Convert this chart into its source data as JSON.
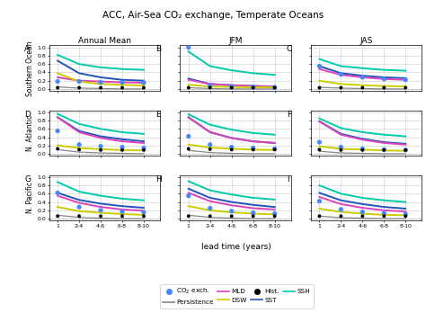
{
  "title": "ACC, Air-Sea CO₂ exchange, Temperate Oceans",
  "col_labels": [
    "Annual Mean",
    "JFM",
    "JAS"
  ],
  "row_labels": [
    "Southern Ocean",
    "N. Atlantic",
    "N. Pacific"
  ],
  "panel_letters": [
    "A",
    "B",
    "C",
    "D",
    "E",
    "F",
    "G",
    "H",
    "I"
  ],
  "xlabel": "lead time (years)",
  "x_ticks": [
    1,
    3,
    5,
    7,
    9
  ],
  "x_tick_labels": [
    "1",
    "2-4",
    "4-6",
    "6-8",
    "8-10"
  ],
  "ylim": [
    -0.05,
    1.05
  ],
  "y_ticks": [
    0.0,
    0.2,
    0.4,
    0.6,
    0.8,
    1.0
  ],
  "line_colors": {
    "SST": "#2255bb",
    "SSH": "#00ccaa",
    "MLD": "#dd44bb",
    "DSW": "#cccc00",
    "Persistence": "#888888"
  },
  "co2_color": "#4488ff",
  "hist_color": "#000000",
  "panels": {
    "A": {
      "SSH": [
        0.82,
        0.6,
        0.52,
        0.48,
        0.46
      ],
      "SST": [
        0.68,
        0.38,
        0.28,
        0.22,
        0.2
      ],
      "MLD": [
        0.28,
        0.2,
        0.18,
        0.16,
        0.15
      ],
      "DSW": [
        0.38,
        0.18,
        0.12,
        0.1,
        0.08
      ],
      "Persistence": [
        0.05,
        0.02,
        0.01,
        0.0,
        0.0
      ],
      "CO2_exch": [
        0.18,
        0.18,
        0.16,
        0.16,
        0.15
      ],
      "Hist": [
        0.03,
        0.03,
        0.03,
        0.03,
        0.03
      ]
    },
    "B": {
      "SSH": [
        0.9,
        0.55,
        0.45,
        0.38,
        0.34
      ],
      "SST": [
        0.25,
        0.12,
        0.09,
        0.07,
        0.06
      ],
      "MLD": [
        0.22,
        0.12,
        0.09,
        0.07,
        0.06
      ],
      "DSW": [
        0.1,
        0.06,
        0.05,
        0.04,
        0.04
      ],
      "Persistence": [
        0.03,
        0.01,
        0.0,
        0.0,
        0.0
      ],
      "CO2_exch": [
        1.0,
        0.08,
        0.06,
        0.05,
        0.04
      ],
      "Hist": [
        0.03,
        0.03,
        0.03,
        0.03,
        0.03
      ]
    },
    "C": {
      "SSH": [
        0.72,
        0.55,
        0.5,
        0.46,
        0.44
      ],
      "SST": [
        0.55,
        0.38,
        0.32,
        0.28,
        0.26
      ],
      "MLD": [
        0.48,
        0.34,
        0.28,
        0.24,
        0.22
      ],
      "DSW": [
        0.2,
        0.12,
        0.09,
        0.07,
        0.06
      ],
      "Persistence": [
        0.04,
        0.02,
        0.01,
        0.0,
        0.0
      ],
      "CO2_exch": [
        0.55,
        0.35,
        0.28,
        0.24,
        0.22
      ],
      "Hist": [
        0.03,
        0.03,
        0.03,
        0.03,
        0.03
      ]
    },
    "D": {
      "SSH": [
        0.96,
        0.72,
        0.6,
        0.52,
        0.48
      ],
      "SST": [
        0.88,
        0.55,
        0.42,
        0.35,
        0.3
      ],
      "MLD": [
        0.88,
        0.52,
        0.38,
        0.3,
        0.26
      ],
      "DSW": [
        0.2,
        0.14,
        0.11,
        0.09,
        0.08
      ],
      "Persistence": [
        0.1,
        0.04,
        0.02,
        0.01,
        0.0
      ],
      "CO2_exch": [
        0.55,
        0.22,
        0.18,
        0.16,
        0.14
      ],
      "Hist": [
        0.12,
        0.1,
        0.09,
        0.09,
        0.09
      ]
    },
    "E": {
      "SSH": [
        0.95,
        0.7,
        0.58,
        0.5,
        0.46
      ],
      "SST": [
        0.88,
        0.52,
        0.38,
        0.3,
        0.26
      ],
      "MLD": [
        0.88,
        0.52,
        0.38,
        0.3,
        0.26
      ],
      "DSW": [
        0.22,
        0.15,
        0.12,
        0.1,
        0.09
      ],
      "Persistence": [
        0.08,
        0.03,
        0.01,
        0.0,
        0.0
      ],
      "CO2_exch": [
        0.42,
        0.22,
        0.16,
        0.14,
        0.12
      ],
      "Hist": [
        0.12,
        0.11,
        0.1,
        0.1,
        0.1
      ]
    },
    "F": {
      "SSH": [
        0.85,
        0.62,
        0.52,
        0.46,
        0.42
      ],
      "SST": [
        0.78,
        0.48,
        0.36,
        0.28,
        0.24
      ],
      "MLD": [
        0.78,
        0.46,
        0.34,
        0.26,
        0.22
      ],
      "DSW": [
        0.18,
        0.12,
        0.1,
        0.08,
        0.07
      ],
      "Persistence": [
        0.06,
        0.02,
        0.01,
        0.0,
        0.0
      ],
      "CO2_exch": [
        0.28,
        0.16,
        0.12,
        0.1,
        0.09
      ],
      "Hist": [
        0.1,
        0.09,
        0.09,
        0.09,
        0.09
      ]
    },
    "G": {
      "SSH": [
        0.88,
        0.65,
        0.55,
        0.48,
        0.44
      ],
      "SST": [
        0.62,
        0.45,
        0.36,
        0.3,
        0.26
      ],
      "MLD": [
        0.55,
        0.38,
        0.28,
        0.22,
        0.19
      ],
      "DSW": [
        0.28,
        0.18,
        0.14,
        0.11,
        0.09
      ],
      "Persistence": [
        0.08,
        0.03,
        0.01,
        0.0,
        0.0
      ],
      "CO2_exch": [
        0.62,
        0.28,
        0.2,
        0.17,
        0.15
      ],
      "Hist": [
        0.06,
        0.06,
        0.06,
        0.06,
        0.06
      ]
    },
    "H": {
      "SSH": [
        0.9,
        0.68,
        0.58,
        0.5,
        0.46
      ],
      "SST": [
        0.72,
        0.5,
        0.4,
        0.33,
        0.28
      ],
      "MLD": [
        0.62,
        0.42,
        0.32,
        0.25,
        0.22
      ],
      "DSW": [
        0.3,
        0.2,
        0.15,
        0.12,
        0.1
      ],
      "Persistence": [
        0.08,
        0.03,
        0.01,
        0.0,
        0.0
      ],
      "CO2_exch": [
        0.55,
        0.25,
        0.18,
        0.14,
        0.12
      ],
      "Hist": [
        0.06,
        0.06,
        0.06,
        0.06,
        0.06
      ]
    },
    "I": {
      "SSH": [
        0.8,
        0.6,
        0.5,
        0.44,
        0.4
      ],
      "SST": [
        0.62,
        0.44,
        0.35,
        0.28,
        0.24
      ],
      "MLD": [
        0.52,
        0.35,
        0.26,
        0.2,
        0.17
      ],
      "DSW": [
        0.24,
        0.16,
        0.12,
        0.09,
        0.08
      ],
      "Persistence": [
        0.06,
        0.02,
        0.01,
        0.0,
        0.0
      ],
      "CO2_exch": [
        0.42,
        0.22,
        0.16,
        0.13,
        0.11
      ],
      "Hist": [
        0.06,
        0.06,
        0.06,
        0.06,
        0.06
      ]
    }
  }
}
